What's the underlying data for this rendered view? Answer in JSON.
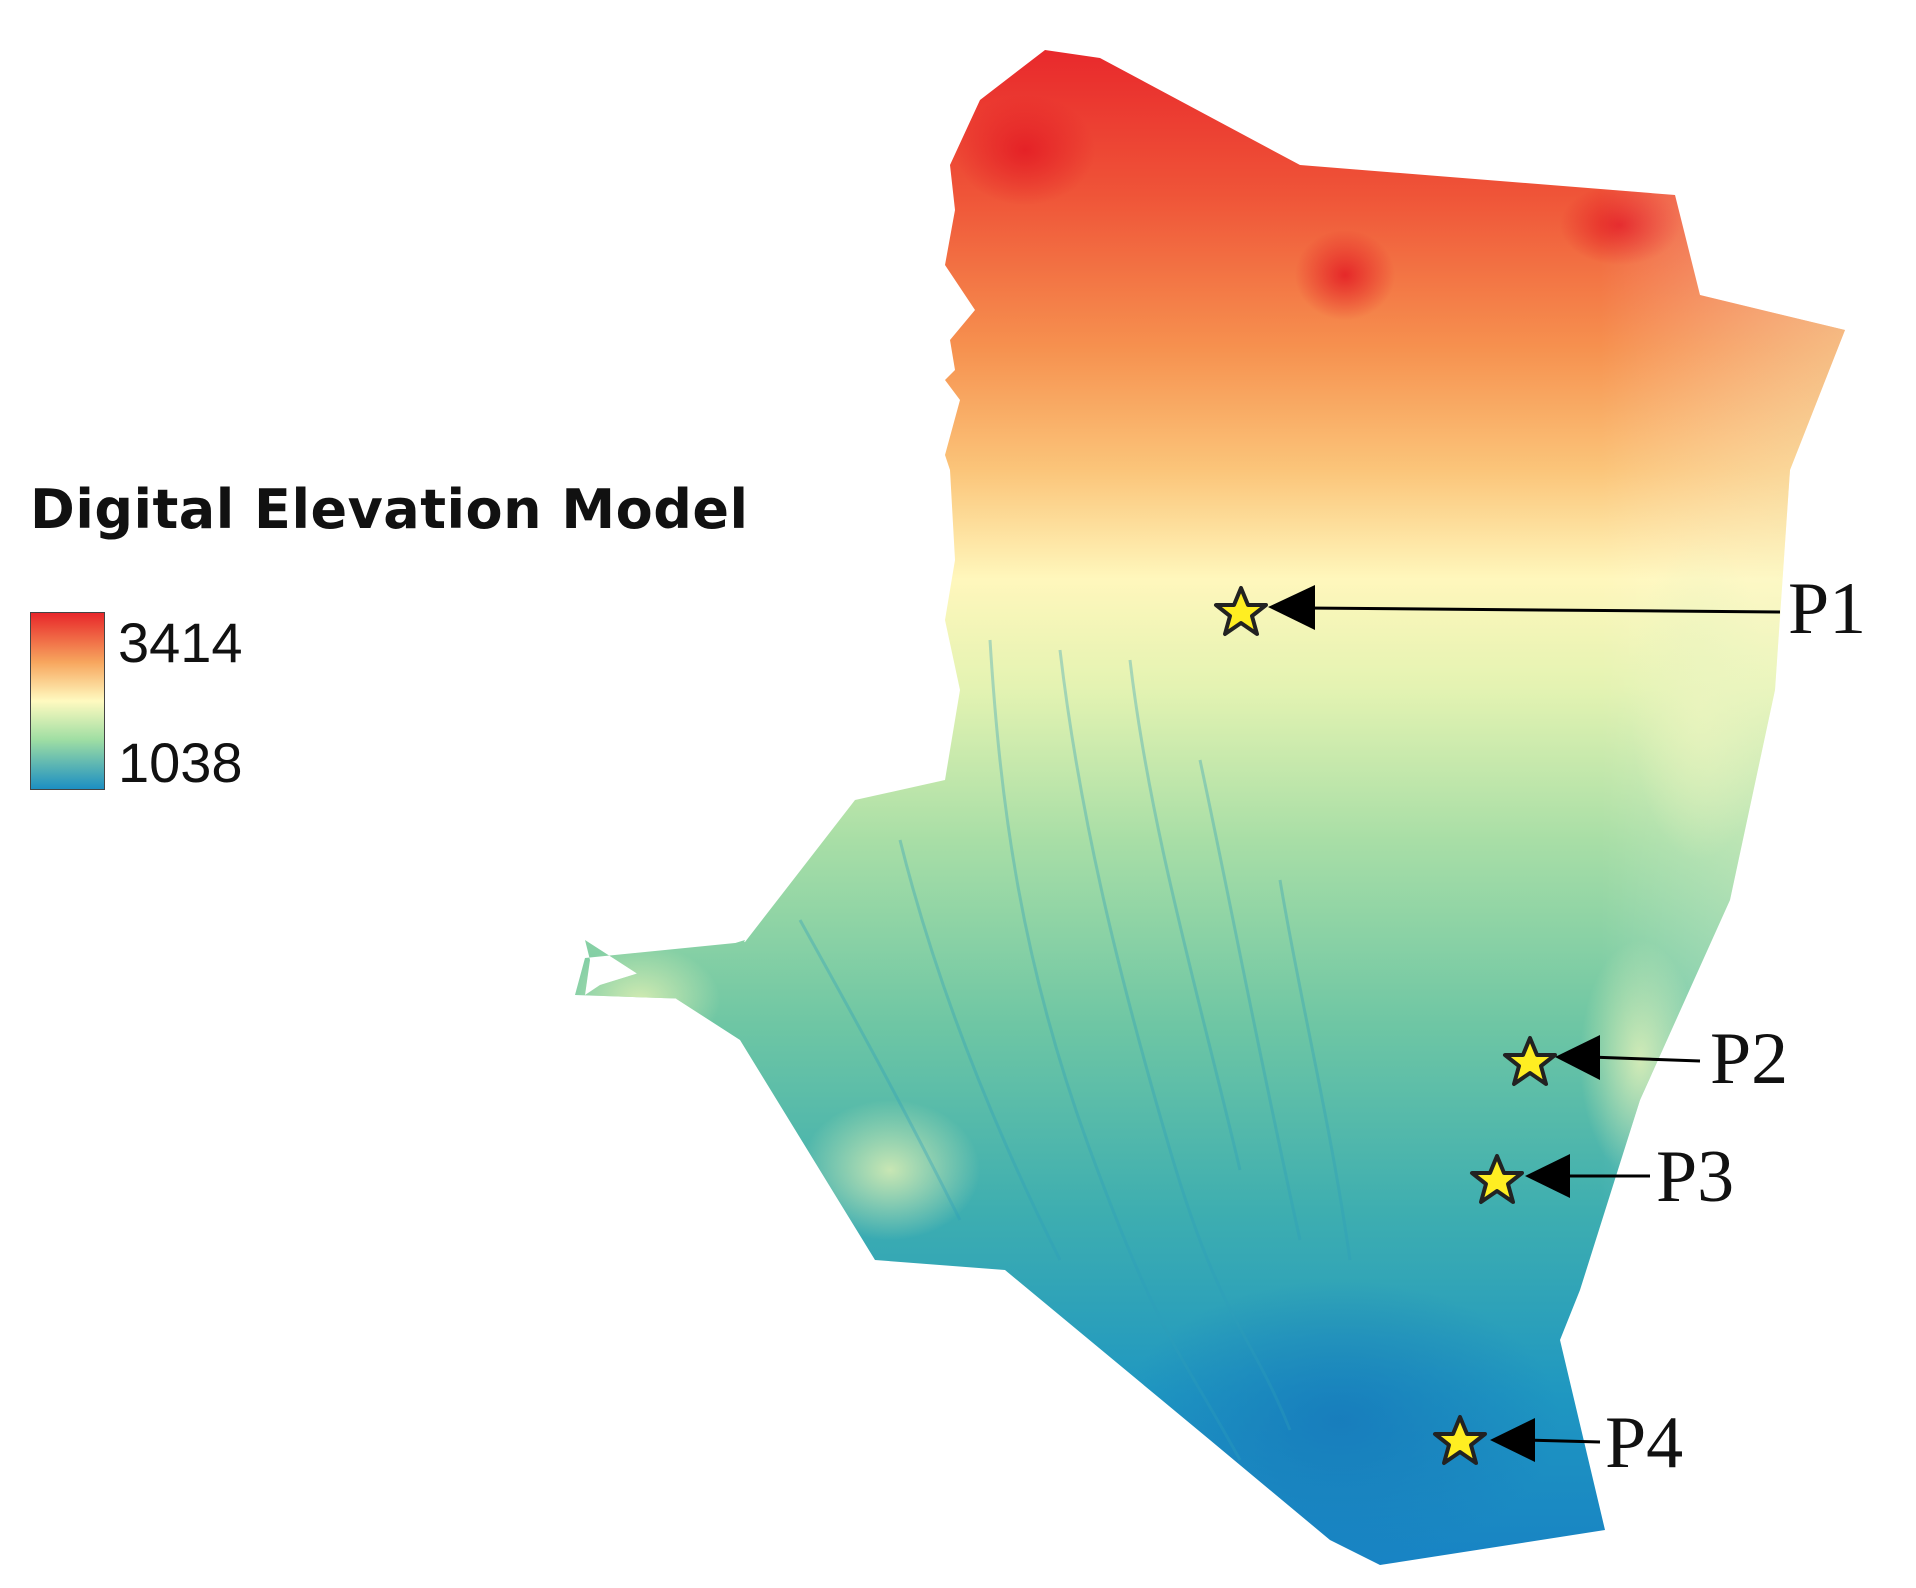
{
  "legend": {
    "title": "Digital Elevation Model",
    "max_value": "3414",
    "min_value": "1038",
    "ramp_colors": [
      "#e8272a",
      "#f7a65e",
      "#fffac0",
      "#9fdea3",
      "#1c8fc2"
    ]
  },
  "map": {
    "points": [
      {
        "id": "P1",
        "label": "P1"
      },
      {
        "id": "P2",
        "label": "P2"
      },
      {
        "id": "P3",
        "label": "P3"
      },
      {
        "id": "P4",
        "label": "P4"
      }
    ],
    "marker_style": "yellow-star",
    "marker_color": "#ffee22"
  }
}
